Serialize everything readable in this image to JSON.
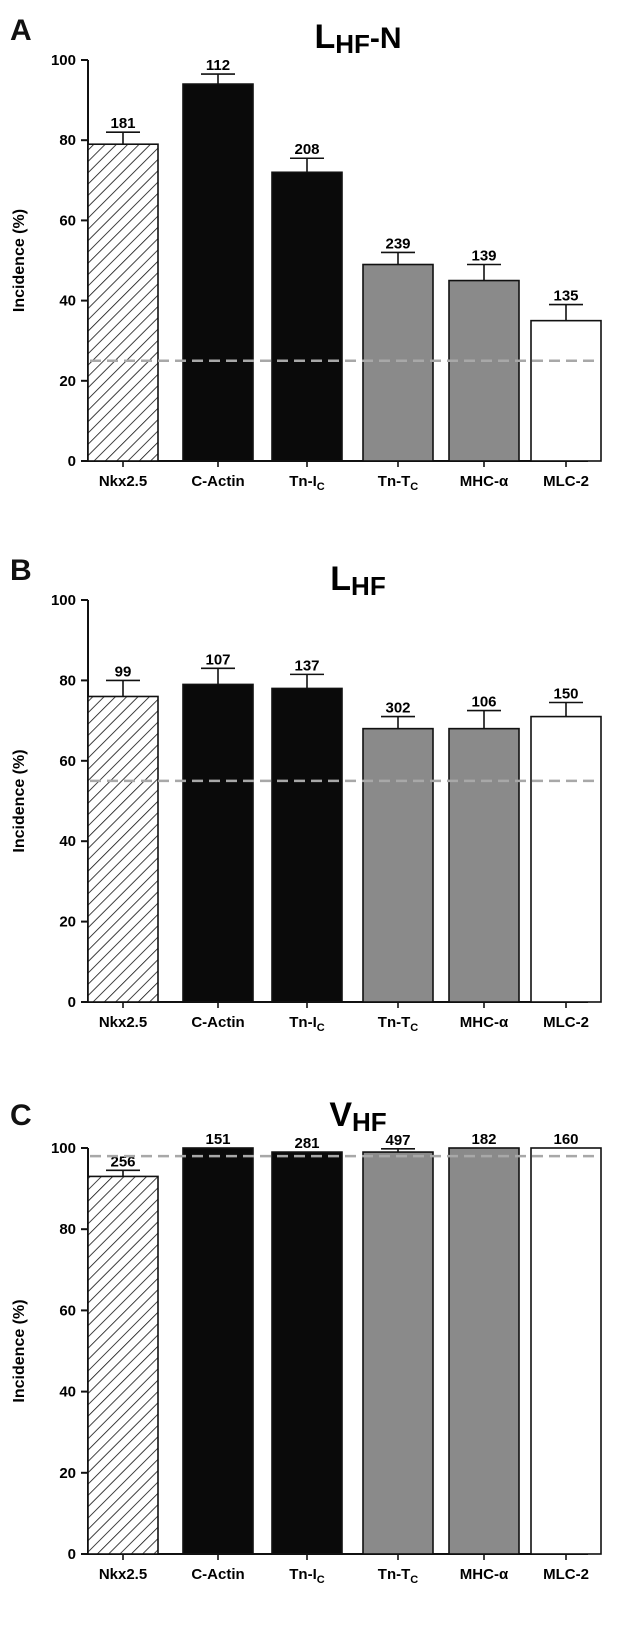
{
  "colors": {
    "black": "#0a0a0a",
    "gray": "#8a8a8a",
    "white": "#ffffff",
    "dash": "#a8a8a8"
  },
  "chart_data": [
    {
      "letter": "A",
      "type": "bar",
      "title_main": "L",
      "title_sub": "HF",
      "title_suffix": "-N",
      "ylabel": "Incidence (%)",
      "ylim": [
        0,
        100
      ],
      "yticks": [
        0,
        20,
        40,
        60,
        80,
        100
      ],
      "reference_line": 25,
      "categories": [
        {
          "main": "Nkx2.5",
          "sub": ""
        },
        {
          "main": "C-Actin",
          "sub": ""
        },
        {
          "main": "Tn-I",
          "sub": "C"
        },
        {
          "main": "Tn-T",
          "sub": "C"
        },
        {
          "main": "MHC-α",
          "sub": ""
        },
        {
          "main": "MLC-2",
          "sub": ""
        }
      ],
      "fills": [
        "hatch",
        "black",
        "black",
        "gray",
        "gray",
        "white"
      ],
      "values": [
        79,
        94,
        72,
        49,
        45,
        35
      ],
      "errors": [
        3,
        2.5,
        3.5,
        3,
        4,
        4
      ],
      "n_labels": [
        "181",
        "112",
        "208",
        "239",
        "139",
        "135"
      ]
    },
    {
      "letter": "B",
      "type": "bar",
      "title_main": "L",
      "title_sub": "HF",
      "title_suffix": "",
      "ylabel": "Incidence (%)",
      "ylim": [
        0,
        100
      ],
      "yticks": [
        0,
        20,
        40,
        60,
        80,
        100
      ],
      "reference_line": 55,
      "categories": [
        {
          "main": "Nkx2.5",
          "sub": ""
        },
        {
          "main": "C-Actin",
          "sub": ""
        },
        {
          "main": "Tn-I",
          "sub": "C"
        },
        {
          "main": "Tn-T",
          "sub": "C"
        },
        {
          "main": "MHC-α",
          "sub": ""
        },
        {
          "main": "MLC-2",
          "sub": ""
        }
      ],
      "fills": [
        "hatch",
        "black",
        "black",
        "gray",
        "gray",
        "white"
      ],
      "values": [
        76,
        79,
        78,
        68,
        68,
        71
      ],
      "errors": [
        4,
        4,
        3.5,
        3,
        4.5,
        3.5
      ],
      "n_labels": [
        "99",
        "107",
        "137",
        "302",
        "106",
        "150"
      ]
    },
    {
      "letter": "C",
      "type": "bar",
      "title_main": "V",
      "title_sub": "HF",
      "title_suffix": "",
      "ylabel": "Incidence (%)",
      "ylim": [
        0,
        100
      ],
      "yticks": [
        0,
        20,
        40,
        60,
        80,
        100
      ],
      "reference_line": 98,
      "categories": [
        {
          "main": "Nkx2.5",
          "sub": ""
        },
        {
          "main": "C-Actin",
          "sub": ""
        },
        {
          "main": "Tn-I",
          "sub": "C"
        },
        {
          "main": "Tn-T",
          "sub": "C"
        },
        {
          "main": "MHC-α",
          "sub": ""
        },
        {
          "main": "MLC-2",
          "sub": ""
        }
      ],
      "fills": [
        "hatch",
        "black",
        "black",
        "gray",
        "gray",
        "white"
      ],
      "values": [
        93,
        100,
        99,
        99,
        100,
        100
      ],
      "errors": [
        1.5,
        0,
        0,
        0.8,
        0,
        0
      ],
      "n_labels": [
        "256",
        "151",
        "281",
        "497",
        "182",
        "160"
      ]
    }
  ]
}
